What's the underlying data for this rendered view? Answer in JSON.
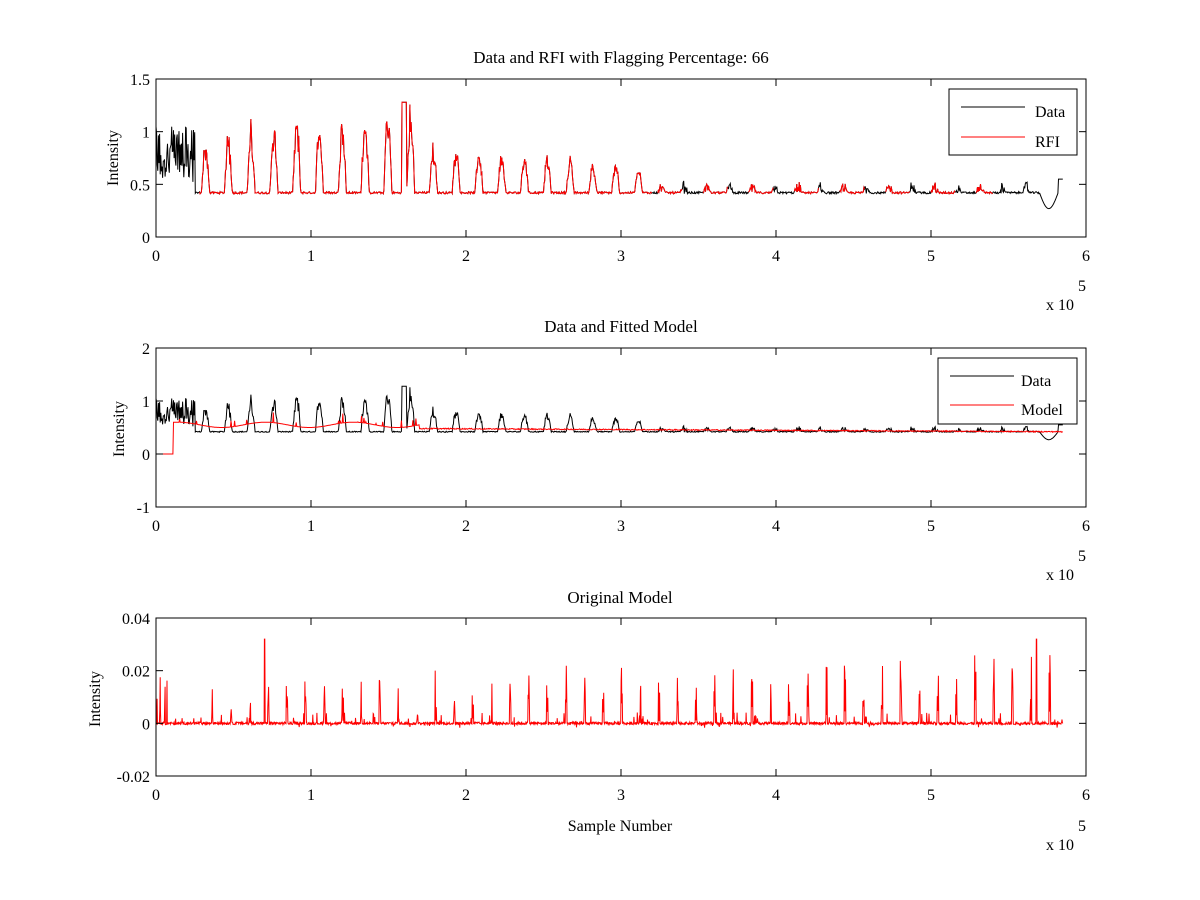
{
  "colors": {
    "data": "#000000",
    "rfi": "#ff0000",
    "model": "#ff0000",
    "axes": "#000000",
    "background": "#ffffff"
  },
  "x_multiplier": {
    "prefix": "x 10",
    "exponent": "5"
  },
  "chart_data": [
    {
      "type": "line",
      "title": "Data and RFI with Flagging Percentage: 66",
      "xlabel": "",
      "ylabel": "Intensity",
      "xlim": [
        0,
        600000
      ],
      "ylim": [
        0,
        1.5
      ],
      "xticks": [
        "0",
        "1",
        "2",
        "3",
        "4",
        "5",
        "6"
      ],
      "yticks": [
        "0",
        "0.5",
        "1",
        "1.5"
      ],
      "legend": {
        "placement": "top-right",
        "entries": [
          "Data",
          "RFI"
        ]
      },
      "series": [
        {
          "name": "Data",
          "color": "#000000",
          "x_range": [
            0,
            585000
          ],
          "baseline": 0.42,
          "descriptor": "periodic spikes decaying from ~1.2 to ~0.5, dip to ~0.27 near 577000"
        },
        {
          "name": "RFI",
          "color": "#ff0000",
          "x_range": [
            28000,
            540000
          ],
          "baseline": 0.42,
          "descriptor": "flagged periodic bumps, peak ~1.28 near 160000"
        }
      ]
    },
    {
      "type": "line",
      "title": "Data and Fitted Model",
      "xlabel": "",
      "ylabel": "Intensity",
      "xlim": [
        0,
        600000
      ],
      "ylim": [
        -1,
        2
      ],
      "xticks": [
        "0",
        "1",
        "2",
        "3",
        "4",
        "5",
        "6"
      ],
      "yticks": [
        "-1",
        "0",
        "1",
        "2"
      ],
      "legend": {
        "placement": "top-right",
        "entries": [
          "Data",
          "Model"
        ]
      },
      "series": [
        {
          "name": "Data",
          "color": "#000000",
          "x_range": [
            0,
            585000
          ],
          "baseline": 0.42
        },
        {
          "name": "Model",
          "color": "#ff0000",
          "x_range": [
            0,
            585000
          ],
          "baseline": 0.42,
          "descriptor": "0 until ~11000, then smooth ~0.6 decaying to ~0.43"
        }
      ]
    },
    {
      "type": "line",
      "title": "Original Model",
      "xlabel": "Sample Number",
      "ylabel": "Intensity",
      "xlim": [
        0,
        600000
      ],
      "ylim": [
        -0.02,
        0.04
      ],
      "xticks": [
        "0",
        "1",
        "2",
        "3",
        "4",
        "5",
        "6"
      ],
      "yticks": [
        "-0.02",
        "0",
        "0.02",
        "0.04"
      ],
      "legend": null,
      "series": [
        {
          "name": "Model",
          "color": "#ff0000",
          "x_range": [
            0,
            585000
          ],
          "baseline": 0.0,
          "descriptor": "sparse spikes up to ~0.032 near 70000 and 568000, small negative dips to ~-0.003"
        }
      ]
    }
  ]
}
